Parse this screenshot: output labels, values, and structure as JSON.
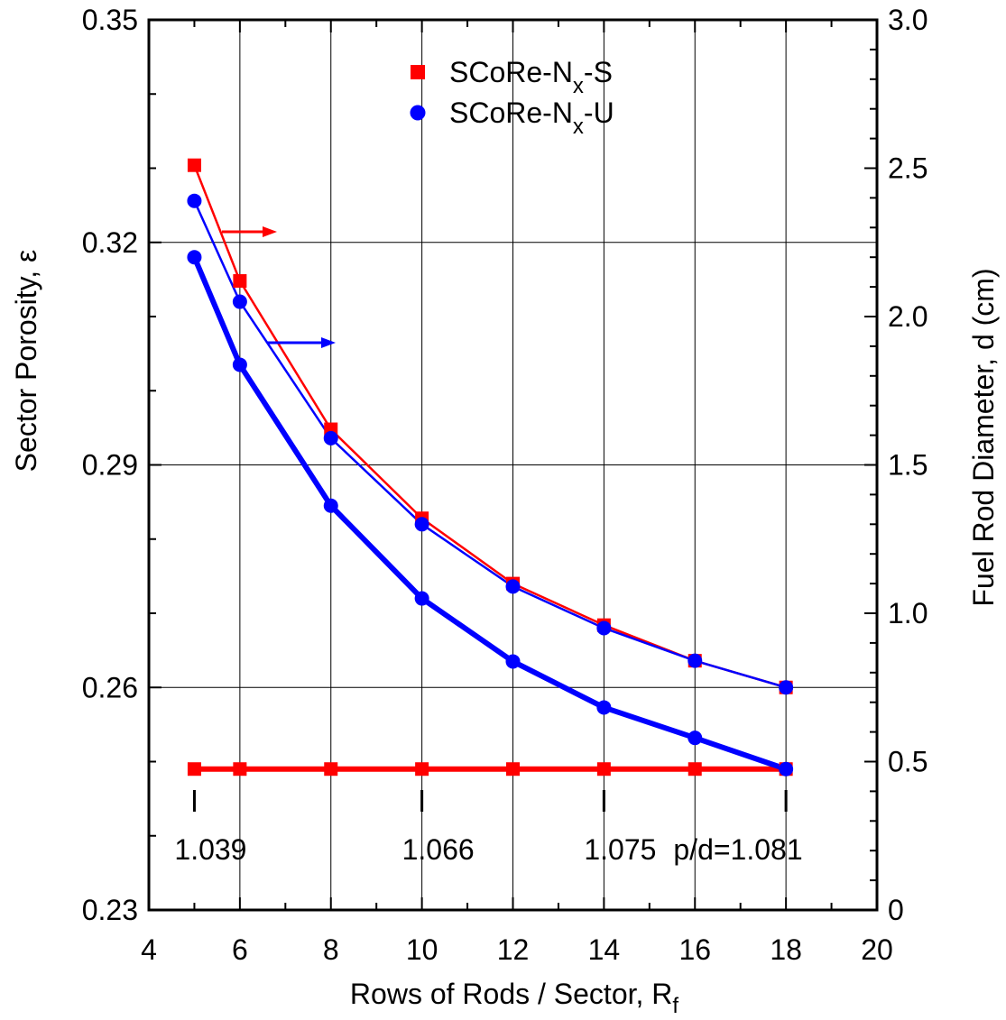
{
  "chart_data": {
    "type": "line",
    "xlabel": "Rows of Rods / Sector, R",
    "xlabel_sub": "f",
    "ylabel_left": "Sector Porosity, ε",
    "ylabel_right": "Fuel Rod Diameter, d (cm)",
    "xlim": [
      4,
      20
    ],
    "xticks": [
      4,
      6,
      8,
      10,
      12,
      14,
      16,
      18,
      20
    ],
    "ylim_left": [
      0.23,
      0.35
    ],
    "yticks_left": [
      "0.23",
      "0.26",
      "0.29",
      "0.32",
      "0.35"
    ],
    "ylim_right": [
      0,
      3.0
    ],
    "yticks_right": [
      "0",
      "0.5",
      "1.0",
      "1.5",
      "2.0",
      "2.5",
      "3.0"
    ],
    "grid": true,
    "legend_position": "top-center",
    "x": [
      5,
      6,
      8,
      10,
      12,
      14,
      16,
      18
    ],
    "series": [
      {
        "name": "SCoRe-N",
        "name_sub": "x",
        "name_tail": "-S",
        "marker": "square",
        "color": "#ff0000",
        "porosity": [
          0.249,
          0.249,
          0.249,
          0.249,
          0.249,
          0.249,
          0.249,
          0.249
        ],
        "diameter": [
          2.51,
          2.12,
          1.62,
          1.32,
          1.1,
          0.96,
          0.84,
          0.75
        ]
      },
      {
        "name": "SCoRe-N",
        "name_sub": "x",
        "name_tail": "-U",
        "marker": "circle",
        "color": "#0000ff",
        "porosity": [
          0.318,
          0.3035,
          0.2845,
          0.272,
          0.2635,
          0.2573,
          0.2532,
          0.249
        ],
        "diameter": [
          2.39,
          2.05,
          1.59,
          1.3,
          1.09,
          0.95,
          0.84,
          0.75
        ]
      }
    ],
    "annotations": {
      "pd_labels": [
        {
          "text": "1.039",
          "x": 5
        },
        {
          "text": "1.066",
          "x": 10
        },
        {
          "text": "1.075",
          "x": 14
        },
        {
          "text": "p/d=1.081",
          "x": 18
        }
      ],
      "arrows": [
        {
          "series": "SCoRe-Nx-S",
          "direction": "right-axis",
          "color": "#ff0000"
        },
        {
          "series": "SCoRe-Nx-U",
          "direction": "right-axis",
          "color": "#0000ff"
        }
      ]
    }
  }
}
